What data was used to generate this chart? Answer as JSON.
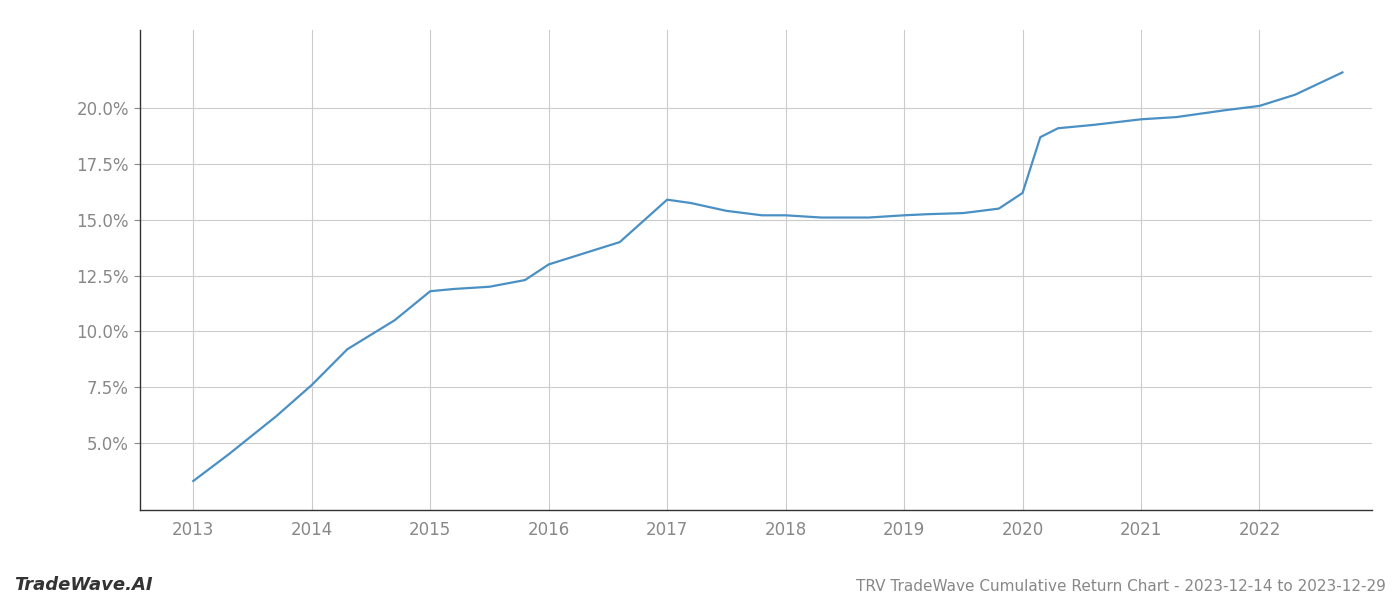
{
  "title": "TRV TradeWave Cumulative Return Chart - 2023-12-14 to 2023-12-29",
  "watermark": "TradeWave.AI",
  "line_color": "#4a90c4",
  "background_color": "#ffffff",
  "grid_color": "#cccccc",
  "x_values": [
    2013.0,
    2013.3,
    2013.7,
    2014.0,
    2014.3,
    2014.7,
    2015.0,
    2015.2,
    2015.5,
    2015.8,
    2016.0,
    2016.3,
    2016.6,
    2017.0,
    2017.2,
    2017.5,
    2017.8,
    2018.0,
    2018.3,
    2018.7,
    2019.0,
    2019.2,
    2019.5,
    2019.8,
    2020.0,
    2020.15,
    2020.3,
    2020.6,
    2021.0,
    2021.3,
    2021.7,
    2022.0,
    2022.3,
    2022.7
  ],
  "y_values": [
    3.3,
    4.5,
    6.2,
    7.6,
    9.2,
    10.5,
    11.8,
    11.9,
    12.0,
    12.3,
    13.0,
    13.5,
    14.0,
    15.9,
    15.75,
    15.4,
    15.2,
    15.2,
    15.1,
    15.1,
    15.2,
    15.25,
    15.3,
    15.5,
    16.2,
    18.7,
    19.1,
    19.25,
    19.5,
    19.6,
    19.9,
    20.1,
    20.6,
    21.6
  ],
  "xlim": [
    2012.55,
    2022.95
  ],
  "ylim": [
    2.0,
    23.5
  ],
  "yticks": [
    5.0,
    7.5,
    10.0,
    12.5,
    15.0,
    17.5,
    20.0
  ],
  "xticks": [
    2013,
    2014,
    2015,
    2016,
    2017,
    2018,
    2019,
    2020,
    2021,
    2022
  ],
  "tick_label_color": "#888888",
  "axis_label_fontsize": 12,
  "title_fontsize": 11,
  "watermark_fontsize": 13,
  "line_width": 1.6
}
